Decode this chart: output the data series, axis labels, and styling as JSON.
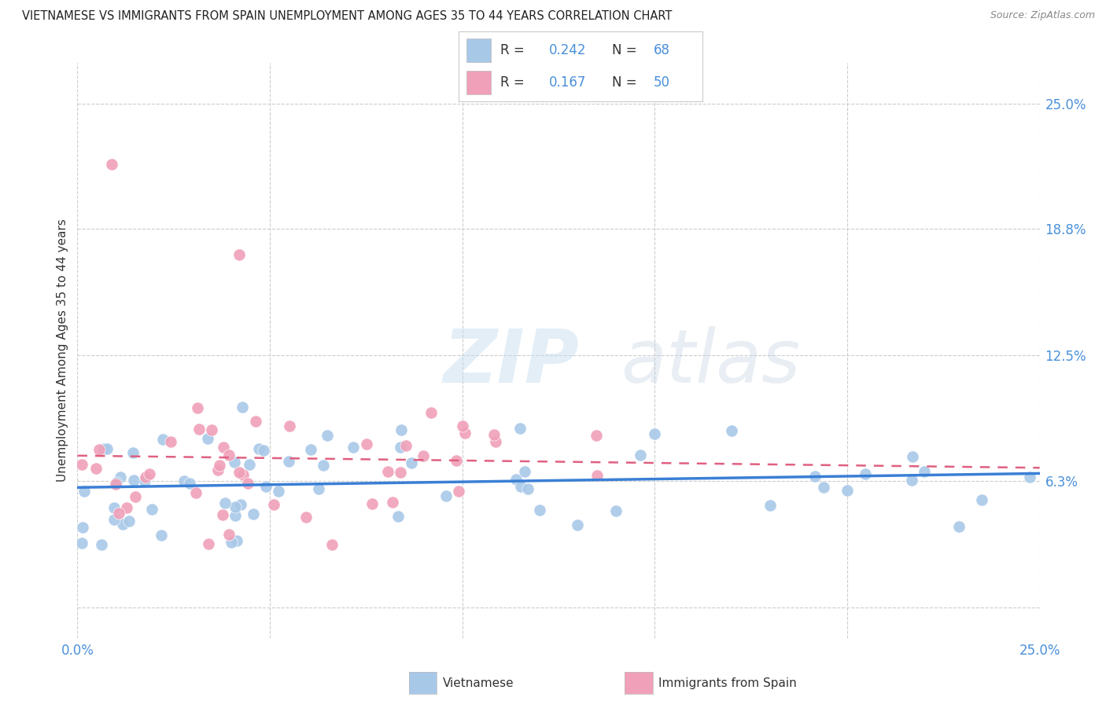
{
  "title": "VIETNAMESE VS IMMIGRANTS FROM SPAIN UNEMPLOYMENT AMONG AGES 35 TO 44 YEARS CORRELATION CHART",
  "source": "Source: ZipAtlas.com",
  "ylabel": "Unemployment Among Ages 35 to 44 years",
  "xlim": [
    0.0,
    0.25
  ],
  "ylim": [
    -0.015,
    0.27
  ],
  "blue_color": "#a8c8e8",
  "pink_color": "#f0a0b8",
  "blue_line_color": "#3a7fd5",
  "pink_line_color": "#e06080",
  "background_color": "#ffffff",
  "grid_color": "#cccccc",
  "R_blue": 0.242,
  "N_blue": 68,
  "R_pink": 0.167,
  "N_pink": 50,
  "legend_label_blue": "Vietnamese",
  "legend_label_pink": "Immigrants from Spain",
  "tick_color": "#4a90d9",
  "ytick_vals": [
    0.0,
    0.063,
    0.125,
    0.188,
    0.25
  ],
  "ytick_labels": [
    "",
    "6.3%",
    "12.5%",
    "18.8%",
    "25.0%"
  ],
  "xtick_vals": [
    0.0,
    0.05,
    0.1,
    0.15,
    0.2,
    0.25
  ],
  "xtick_labels": [
    "0.0%",
    "",
    "",
    "",
    "",
    "25.0%"
  ]
}
